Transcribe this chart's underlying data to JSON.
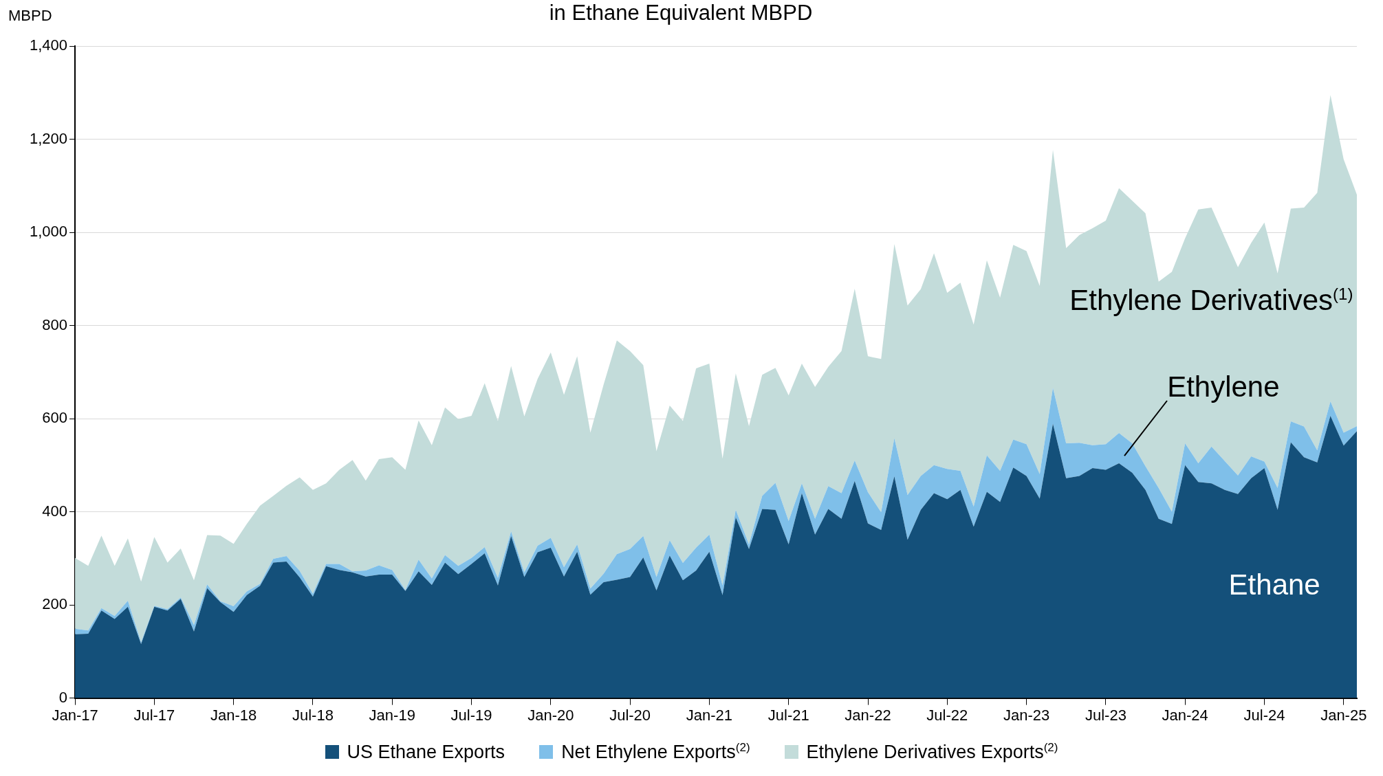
{
  "chart_data": {
    "type": "area",
    "title": "in Ethane Equivalent MBPD",
    "ylabel": "MBPD",
    "stacked": true,
    "legend": "bottom",
    "grid": "y",
    "marker": "none",
    "categories": [
      "Jan-17",
      null,
      null,
      null,
      null,
      null,
      "Jul-17",
      null,
      null,
      null,
      null,
      null,
      "Jan-18",
      null,
      null,
      null,
      null,
      null,
      "Jul-18",
      null,
      null,
      null,
      null,
      null,
      "Jan-19",
      null,
      null,
      null,
      null,
      null,
      "Jul-19",
      null,
      null,
      null,
      null,
      null,
      "Jan-20",
      null,
      null,
      null,
      null,
      null,
      "Jul-20",
      null,
      null,
      null,
      null,
      null,
      "Jan-21",
      null,
      null,
      null,
      null,
      null,
      "Jul-21",
      null,
      null,
      null,
      null,
      null,
      "Jan-22",
      null,
      null,
      null,
      null,
      null,
      "Jul-22",
      null,
      null,
      null,
      null,
      null,
      "Jan-23",
      null,
      null,
      null,
      null,
      null,
      "Jul-23",
      null,
      null,
      null,
      null,
      null,
      "Jan-24",
      null,
      null,
      null,
      null,
      null,
      "Jul-24",
      null,
      null,
      null,
      null,
      null,
      "Jan-25",
      null
    ],
    "ylim": [
      0,
      1400
    ],
    "yticks": [
      0,
      200,
      400,
      600,
      800,
      {
        "value": 1000,
        "label": "1,000"
      },
      {
        "value": 1200,
        "label": "1,200"
      },
      {
        "value": 1400,
        "label": "1,400"
      }
    ],
    "series": [
      {
        "name": "US Ethane Exports",
        "color": "#14507a",
        "values": [
          137,
          138,
          188,
          170,
          196,
          116,
          196,
          188,
          213,
          143,
          236,
          206,
          185,
          221,
          241,
          291,
          293,
          259,
          218,
          283,
          275,
          270,
          261,
          265,
          265,
          230,
          272,
          243,
          291,
          266,
          288,
          311,
          242,
          348,
          260,
          313,
          323,
          261,
          314,
          222,
          249,
          254,
          260,
          302,
          231,
          306,
          253,
          274,
          314,
          221,
          388,
          320,
          406,
          404,
          330,
          440,
          351,
          406,
          385,
          466,
          375,
          361,
          476,
          340,
          404,
          440,
          427,
          447,
          368,
          443,
          421,
          495,
          477,
          428,
          589,
          472,
          477,
          494,
          490,
          504,
          484,
          447,
          385,
          374,
          500,
          464,
          461,
          447,
          438,
          472,
          494,
          404,
          549,
          517,
          506,
          606,
          542,
          573
        ]
      },
      {
        "name": "Net Ethylene Exports$^{(2)}$",
        "color": "#7fbfe9",
        "values": [
          12,
          7,
          5,
          6,
          13,
          4,
          2,
          3,
          3,
          14,
          8,
          2,
          12,
          8,
          4,
          8,
          12,
          14,
          6,
          5,
          13,
          2,
          13,
          20,
          10,
          2,
          25,
          14,
          16,
          18,
          13,
          13,
          16,
          10,
          10,
          14,
          21,
          20,
          16,
          13,
          18,
          55,
          60,
          46,
          29,
          33,
          37,
          49,
          37,
          21,
          16,
          10,
          28,
          58,
          50,
          21,
          34,
          49,
          55,
          44,
          67,
          38,
          82,
          96,
          73,
          60,
          65,
          41,
          43,
          78,
          67,
          60,
          68,
          53,
          77,
          75,
          71,
          49,
          55,
          65,
          63,
          51,
          66,
          26,
          47,
          40,
          79,
          62,
          40,
          47,
          14,
          47,
          45,
          66,
          26,
          31,
          28,
          11
        ]
      },
      {
        "name": "Ethylene Derivatives Exports$^{(2)}$",
        "color": "#c3dcda",
        "values": [
          152,
          139,
          156,
          108,
          134,
          130,
          148,
          100,
          105,
          96,
          106,
          141,
          134,
          145,
          168,
          135,
          151,
          201,
          223,
          173,
          202,
          239,
          193,
          228,
          242,
          258,
          299,
          286,
          317,
          315,
          305,
          352,
          337,
          355,
          335,
          358,
          398,
          370,
          404,
          335,
          406,
          459,
          425,
          367,
          270,
          289,
          305,
          385,
          367,
          272,
          293,
          254,
          260,
          247,
          270,
          257,
          283,
          256,
          305,
          369,
          292,
          329,
          417,
          407,
          401,
          455,
          378,
          404,
          391,
          419,
          372,
          418,
          415,
          404,
          511,
          419,
          446,
          466,
          480,
          526,
          521,
          543,
          443,
          515,
          440,
          545,
          513,
          480,
          447,
          458,
          513,
          461,
          457,
          470,
          553,
          658,
          587,
          497
        ]
      }
    ],
    "annotations": [
      "Ethylene Derivatives$^{(1)}$",
      {
        "text": "Ethylene",
        "y": 520
      },
      "Ethane"
    ]
  }
}
